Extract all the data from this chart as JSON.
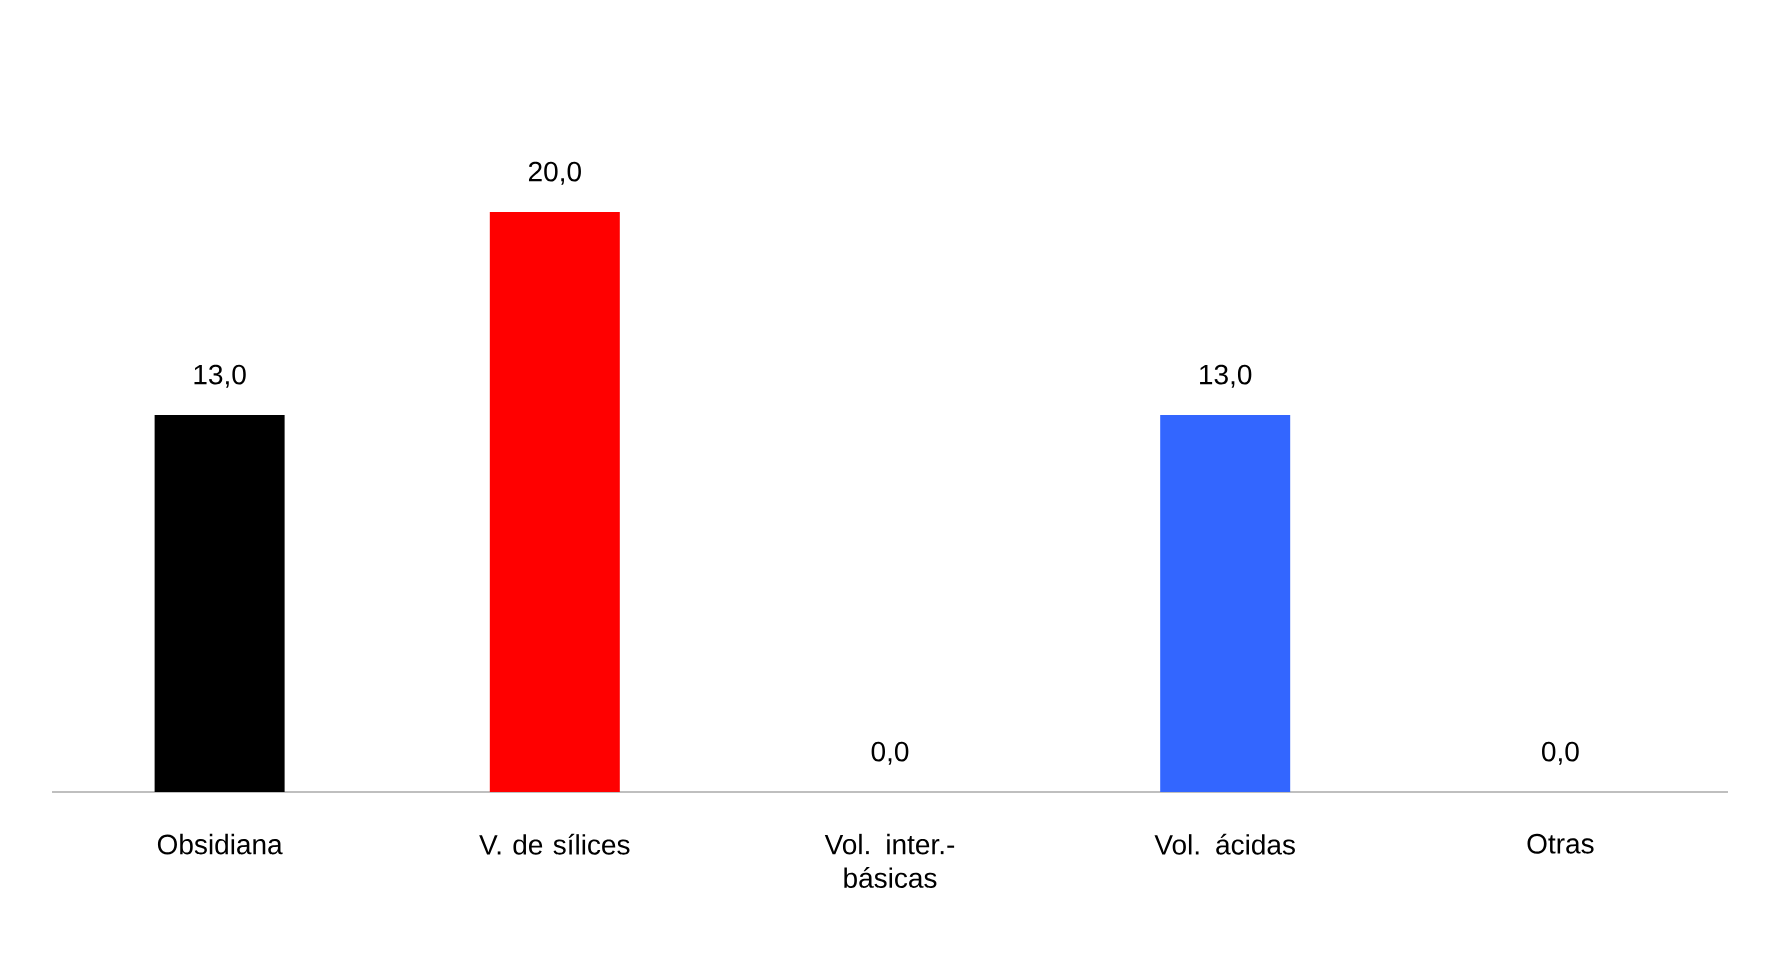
{
  "chart_data": {
    "type": "bar",
    "categories": [
      "Obsidiana",
      "V. de sílices",
      "Vol. inter.-básicas",
      "Vol. ácidas",
      "Otras"
    ],
    "values": [
      13,
      20,
      0,
      13,
      0
    ],
    "colors": [
      "#000000",
      "#ff0000",
      "#3366ff",
      "#3366ff",
      "#3366ff"
    ],
    "value_labels": [
      "13,0",
      "20,0",
      "0,0",
      "13,0",
      "0,0"
    ]
  }
}
